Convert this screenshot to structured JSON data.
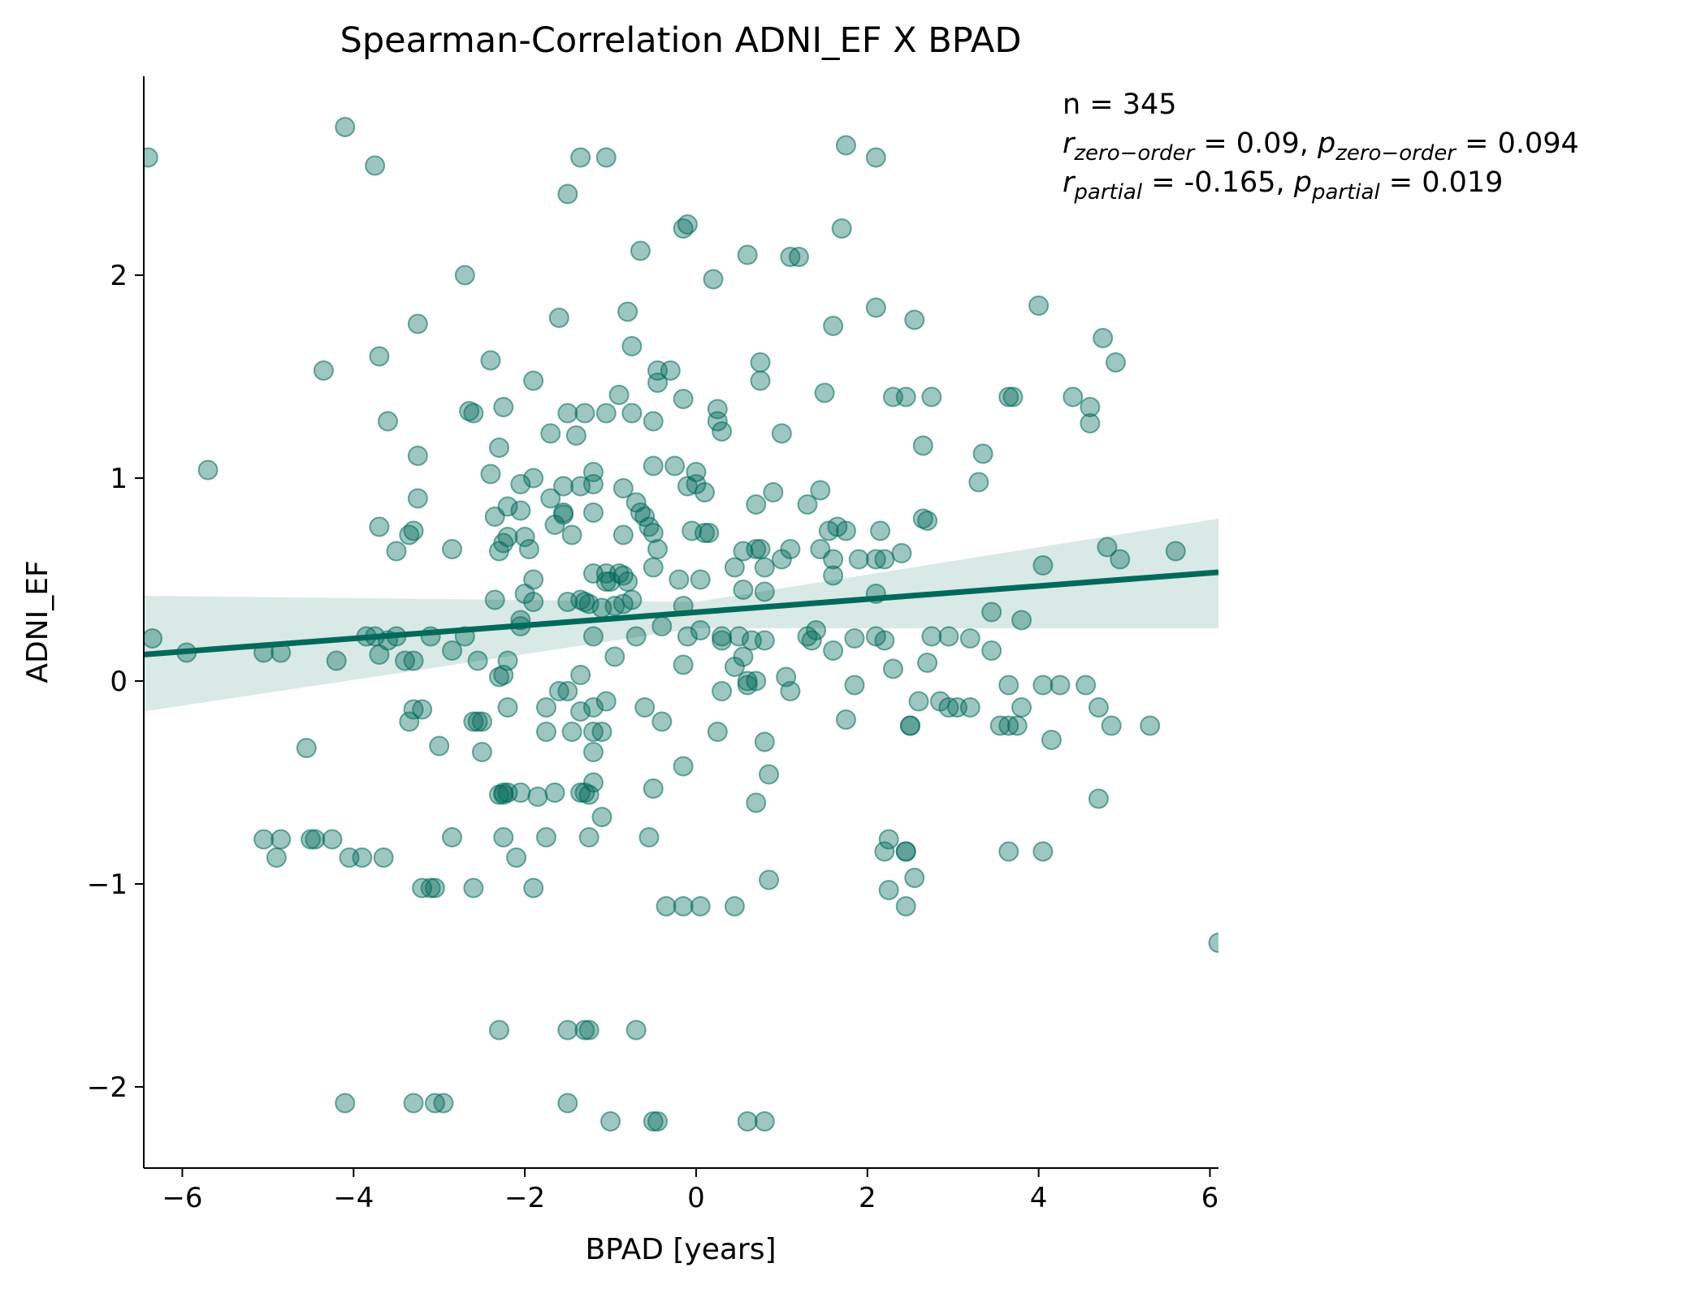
{
  "chart_data": {
    "type": "scatter",
    "title": "Spearman-Correlation ADNI_EF X BPAD",
    "xlabel": "BPAD [years]",
    "ylabel": "ADNI_EF",
    "xlim": [
      -6.45,
      6.1
    ],
    "ylim": [
      -2.4,
      2.98
    ],
    "xticks": [
      -6,
      -4,
      -2,
      0,
      2,
      4,
      6
    ],
    "xtick_labels": [
      "−6",
      "−4",
      "−2",
      "0",
      "2",
      "4",
      "6"
    ],
    "yticks": [
      -2,
      -1,
      0,
      1,
      2
    ],
    "ytick_labels": [
      "−2",
      "−1",
      "0",
      "1",
      "2"
    ],
    "grid": false,
    "colors": {
      "points": "#006a5a",
      "line": "#006a5a",
      "band": "#006a5a"
    },
    "regression": {
      "slope": 0.0323,
      "intercept": 0.339,
      "ci_lower": [
        [
          -6.45,
          -0.15
        ],
        [
          0.0,
          0.26
        ],
        [
          6.1,
          0.26
        ]
      ],
      "ci_upper": [
        [
          -6.45,
          0.42
        ],
        [
          0.0,
          0.39
        ],
        [
          6.1,
          0.8
        ]
      ]
    },
    "annotation": {
      "n_text": "n = 345",
      "r_zero_text": "r",
      "r_zero_sub": "zero−order",
      "r_zero_value": " = 0.09, ",
      "p_zero_text": "p",
      "p_zero_sub": "zero−order",
      "p_zero_value": " = 0.094",
      "r_partial_text": "r",
      "r_partial_sub": "partial",
      "r_partial_value": " = -0.165, ",
      "p_partial_text": "p",
      "p_partial_sub": "partial",
      "p_partial_value": " = 0.019"
    },
    "points": [
      [
        -6.4,
        2.58
      ],
      [
        -4.1,
        2.73
      ],
      [
        -3.75,
        2.54
      ],
      [
        -1.5,
        2.4
      ],
      [
        -1.35,
        2.58
      ],
      [
        -1.05,
        2.58
      ],
      [
        1.75,
        2.64
      ],
      [
        2.1,
        2.58
      ],
      [
        -0.15,
        2.23
      ],
      [
        -0.1,
        2.25
      ],
      [
        1.7,
        2.23
      ],
      [
        -0.65,
        2.12
      ],
      [
        0.6,
        2.1
      ],
      [
        1.1,
        2.09
      ],
      [
        1.2,
        2.09
      ],
      [
        -2.7,
        2.0
      ],
      [
        0.2,
        1.98
      ],
      [
        2.1,
        1.84
      ],
      [
        4.0,
        1.85
      ],
      [
        -0.8,
        1.82
      ],
      [
        -1.6,
        1.79
      ],
      [
        2.55,
        1.78
      ],
      [
        1.6,
        1.75
      ],
      [
        -3.25,
        1.76
      ],
      [
        4.75,
        1.69
      ],
      [
        -0.75,
        1.65
      ],
      [
        -3.7,
        1.6
      ],
      [
        -2.4,
        1.58
      ],
      [
        0.75,
        1.57
      ],
      [
        4.9,
        1.57
      ],
      [
        -4.35,
        1.53
      ],
      [
        -0.45,
        1.53
      ],
      [
        -0.3,
        1.53
      ],
      [
        -1.9,
        1.48
      ],
      [
        -0.45,
        1.47
      ],
      [
        0.75,
        1.48
      ],
      [
        -0.9,
        1.41
      ],
      [
        -0.15,
        1.39
      ],
      [
        1.5,
        1.42
      ],
      [
        2.3,
        1.4
      ],
      [
        2.45,
        1.4
      ],
      [
        2.75,
        1.4
      ],
      [
        3.65,
        1.4
      ],
      [
        3.7,
        1.4
      ],
      [
        4.4,
        1.4
      ],
      [
        4.6,
        1.35
      ],
      [
        -2.25,
        1.35
      ],
      [
        0.25,
        1.34
      ],
      [
        -2.65,
        1.33
      ],
      [
        -2.6,
        1.32
      ],
      [
        -1.5,
        1.32
      ],
      [
        -1.3,
        1.32
      ],
      [
        -1.05,
        1.32
      ],
      [
        -0.75,
        1.32
      ],
      [
        -0.5,
        1.28
      ],
      [
        0.25,
        1.28
      ],
      [
        -3.6,
        1.28
      ],
      [
        4.6,
        1.27
      ],
      [
        0.3,
        1.23
      ],
      [
        -1.7,
        1.22
      ],
      [
        -1.4,
        1.21
      ],
      [
        1.0,
        1.22
      ],
      [
        2.65,
        1.16
      ],
      [
        -2.3,
        1.15
      ],
      [
        -3.25,
        1.11
      ],
      [
        3.35,
        1.12
      ],
      [
        -5.7,
        1.04
      ],
      [
        -2.4,
        1.02
      ],
      [
        -1.2,
        1.03
      ],
      [
        -0.5,
        1.06
      ],
      [
        -0.25,
        1.06
      ],
      [
        0.0,
        1.03
      ],
      [
        -1.2,
        0.97
      ],
      [
        -1.35,
        0.96
      ],
      [
        -1.55,
        0.96
      ],
      [
        -2.05,
        0.97
      ],
      [
        -1.9,
        1.0
      ],
      [
        0.0,
        0.97
      ],
      [
        -0.1,
        0.96
      ],
      [
        -0.85,
        0.95
      ],
      [
        0.1,
        0.93
      ],
      [
        0.9,
        0.93
      ],
      [
        1.45,
        0.94
      ],
      [
        3.3,
        0.98
      ],
      [
        -3.25,
        0.9
      ],
      [
        -2.2,
        0.86
      ],
      [
        -1.7,
        0.9
      ],
      [
        -0.7,
        0.88
      ],
      [
        -1.55,
        0.82
      ],
      [
        -1.55,
        0.83
      ],
      [
        -1.2,
        0.83
      ],
      [
        -0.65,
        0.83
      ],
      [
        -0.6,
        0.81
      ],
      [
        0.7,
        0.87
      ],
      [
        1.3,
        0.87
      ],
      [
        2.65,
        0.8
      ],
      [
        2.7,
        0.79
      ],
      [
        -2.05,
        0.84
      ],
      [
        -2.35,
        0.81
      ],
      [
        -3.7,
        0.76
      ],
      [
        -3.35,
        0.72
      ],
      [
        -3.3,
        0.74
      ],
      [
        -2.2,
        0.71
      ],
      [
        -2.0,
        0.71
      ],
      [
        -1.45,
        0.72
      ],
      [
        -1.65,
        0.77
      ],
      [
        -0.55,
        0.76
      ],
      [
        -0.5,
        0.73
      ],
      [
        -0.85,
        0.72
      ],
      [
        0.1,
        0.73
      ],
      [
        0.15,
        0.73
      ],
      [
        -0.05,
        0.74
      ],
      [
        1.55,
        0.74
      ],
      [
        1.65,
        0.76
      ],
      [
        1.75,
        0.74
      ],
      [
        2.15,
        0.74
      ],
      [
        -3.5,
        0.64
      ],
      [
        -2.85,
        0.65
      ],
      [
        -2.3,
        0.64
      ],
      [
        -2.25,
        0.68
      ],
      [
        -1.95,
        0.65
      ],
      [
        -0.45,
        0.65
      ],
      [
        0.55,
        0.64
      ],
      [
        0.7,
        0.65
      ],
      [
        0.75,
        0.65
      ],
      [
        1.1,
        0.65
      ],
      [
        1.45,
        0.65
      ],
      [
        2.4,
        0.63
      ],
      [
        1.0,
        0.6
      ],
      [
        1.6,
        0.6
      ],
      [
        1.9,
        0.6
      ],
      [
        2.1,
        0.6
      ],
      [
        2.2,
        0.6
      ],
      [
        4.05,
        0.57
      ],
      [
        4.8,
        0.66
      ],
      [
        4.95,
        0.6
      ],
      [
        5.6,
        0.64
      ],
      [
        -1.2,
        0.53
      ],
      [
        -1.05,
        0.53
      ],
      [
        -0.85,
        0.52
      ],
      [
        -0.9,
        0.53
      ],
      [
        -0.5,
        0.56
      ],
      [
        0.45,
        0.56
      ],
      [
        0.8,
        0.56
      ],
      [
        1.6,
        0.52
      ],
      [
        -1.9,
        0.5
      ],
      [
        -1.05,
        0.49
      ],
      [
        -1.0,
        0.49
      ],
      [
        -0.8,
        0.49
      ],
      [
        -0.2,
        0.5
      ],
      [
        0.05,
        0.5
      ],
      [
        -1.5,
        0.39
      ],
      [
        -1.3,
        0.39
      ],
      [
        -1.25,
        0.38
      ],
      [
        -1.1,
        0.36
      ],
      [
        -0.95,
        0.37
      ],
      [
        -0.85,
        0.38
      ],
      [
        -0.75,
        0.4
      ],
      [
        -0.15,
        0.37
      ],
      [
        0.55,
        0.45
      ],
      [
        0.8,
        0.44
      ],
      [
        2.1,
        0.43
      ],
      [
        -2.35,
        0.4
      ],
      [
        -2.0,
        0.43
      ],
      [
        -1.9,
        0.39
      ],
      [
        -1.35,
        0.4
      ],
      [
        3.45,
        0.34
      ],
      [
        3.8,
        0.3
      ],
      [
        -2.05,
        0.3
      ],
      [
        -2.05,
        0.27
      ],
      [
        -0.4,
        0.27
      ],
      [
        -0.1,
        0.22
      ],
      [
        0.05,
        0.25
      ],
      [
        0.3,
        0.2
      ],
      [
        0.3,
        0.22
      ],
      [
        0.5,
        0.22
      ],
      [
        0.65,
        0.2
      ],
      [
        0.8,
        0.2
      ],
      [
        1.3,
        0.22
      ],
      [
        1.35,
        0.2
      ],
      [
        1.4,
        0.25
      ],
      [
        1.85,
        0.21
      ],
      [
        2.1,
        0.22
      ],
      [
        2.2,
        0.2
      ],
      [
        2.75,
        0.22
      ],
      [
        2.95,
        0.22
      ],
      [
        3.2,
        0.21
      ],
      [
        -6.35,
        0.21
      ],
      [
        -5.95,
        0.14
      ],
      [
        -5.05,
        0.14
      ],
      [
        -4.85,
        0.14
      ],
      [
        -3.85,
        0.22
      ],
      [
        -3.75,
        0.22
      ],
      [
        -3.6,
        0.2
      ],
      [
        -3.5,
        0.22
      ],
      [
        -3.1,
        0.22
      ],
      [
        -2.7,
        0.22
      ],
      [
        -1.2,
        0.22
      ],
      [
        -0.7,
        0.22
      ],
      [
        -3.7,
        0.13
      ],
      [
        -3.4,
        0.1
      ],
      [
        -3.3,
        0.1
      ],
      [
        -2.85,
        0.15
      ],
      [
        -2.55,
        0.1
      ],
      [
        -2.2,
        0.1
      ],
      [
        -0.95,
        0.12
      ],
      [
        -0.15,
        0.08
      ],
      [
        0.45,
        0.07
      ],
      [
        0.55,
        0.12
      ],
      [
        1.6,
        0.15
      ],
      [
        2.3,
        0.06
      ],
      [
        2.7,
        0.09
      ],
      [
        3.45,
        0.15
      ],
      [
        -4.2,
        0.1
      ],
      [
        -2.3,
        0.02
      ],
      [
        -2.25,
        0.03
      ],
      [
        -1.35,
        0.03
      ],
      [
        0.6,
        0.0
      ],
      [
        0.7,
        0.0
      ],
      [
        1.05,
        0.02
      ],
      [
        3.65,
        -0.02
      ],
      [
        4.05,
        -0.02
      ],
      [
        4.25,
        -0.02
      ],
      [
        4.55,
        -0.02
      ],
      [
        0.3,
        -0.05
      ],
      [
        0.6,
        -0.02
      ],
      [
        1.1,
        -0.05
      ],
      [
        1.85,
        -0.02
      ],
      [
        -1.5,
        -0.05
      ],
      [
        -1.6,
        -0.05
      ],
      [
        -1.05,
        -0.1
      ],
      [
        -1.75,
        -0.13
      ],
      [
        -1.35,
        -0.15
      ],
      [
        -1.2,
        -0.13
      ],
      [
        -0.6,
        -0.13
      ],
      [
        -2.2,
        -0.13
      ],
      [
        -3.3,
        -0.14
      ],
      [
        -3.2,
        -0.14
      ],
      [
        2.6,
        -0.1
      ],
      [
        2.85,
        -0.1
      ],
      [
        2.95,
        -0.13
      ],
      [
        3.05,
        -0.13
      ],
      [
        3.2,
        -0.13
      ],
      [
        3.8,
        -0.13
      ],
      [
        4.7,
        -0.13
      ],
      [
        -3.35,
        -0.2
      ],
      [
        -2.6,
        -0.2
      ],
      [
        -2.55,
        -0.2
      ],
      [
        -2.5,
        -0.2
      ],
      [
        -1.75,
        -0.25
      ],
      [
        -1.45,
        -0.25
      ],
      [
        -1.2,
        -0.25
      ],
      [
        -1.1,
        -0.25
      ],
      [
        -0.4,
        -0.2
      ],
      [
        0.25,
        -0.25
      ],
      [
        1.75,
        -0.19
      ],
      [
        2.5,
        -0.22
      ],
      [
        2.5,
        -0.22
      ],
      [
        3.55,
        -0.22
      ],
      [
        3.65,
        -0.22
      ],
      [
        3.75,
        -0.22
      ],
      [
        4.85,
        -0.22
      ],
      [
        5.3,
        -0.22
      ],
      [
        -4.55,
        -0.33
      ],
      [
        -3.0,
        -0.32
      ],
      [
        -2.5,
        -0.35
      ],
      [
        -1.2,
        -0.35
      ],
      [
        0.8,
        -0.3
      ],
      [
        4.15,
        -0.29
      ],
      [
        -0.15,
        -0.42
      ],
      [
        0.85,
        -0.46
      ],
      [
        -2.3,
        -0.56
      ],
      [
        -2.25,
        -0.55
      ],
      [
        -2.2,
        -0.55
      ],
      [
        -2.25,
        -0.56
      ],
      [
        -2.05,
        -0.55
      ],
      [
        -1.85,
        -0.57
      ],
      [
        -1.65,
        -0.55
      ],
      [
        -1.35,
        -0.55
      ],
      [
        -1.3,
        -0.55
      ],
      [
        -1.25,
        -0.56
      ],
      [
        -1.2,
        -0.5
      ],
      [
        -0.5,
        -0.53
      ],
      [
        0.7,
        -0.6
      ],
      [
        4.7,
        -0.58
      ],
      [
        -1.1,
        -0.67
      ],
      [
        -5.05,
        -0.78
      ],
      [
        -4.85,
        -0.78
      ],
      [
        -4.5,
        -0.78
      ],
      [
        -4.45,
        -0.78
      ],
      [
        -4.25,
        -0.78
      ],
      [
        -2.85,
        -0.77
      ],
      [
        -2.25,
        -0.77
      ],
      [
        -1.75,
        -0.77
      ],
      [
        -1.25,
        -0.77
      ],
      [
        -0.55,
        -0.77
      ],
      [
        2.25,
        -0.78
      ],
      [
        -4.9,
        -0.87
      ],
      [
        -4.05,
        -0.87
      ],
      [
        -3.9,
        -0.87
      ],
      [
        -3.65,
        -0.87
      ],
      [
        -2.1,
        -0.87
      ],
      [
        2.2,
        -0.84
      ],
      [
        2.45,
        -0.84
      ],
      [
        2.45,
        -0.84
      ],
      [
        3.65,
        -0.84
      ],
      [
        4.05,
        -0.84
      ],
      [
        -3.2,
        -1.02
      ],
      [
        -3.1,
        -1.02
      ],
      [
        -3.05,
        -1.02
      ],
      [
        -2.6,
        -1.02
      ],
      [
        -1.9,
        -1.02
      ],
      [
        0.85,
        -0.98
      ],
      [
        2.25,
        -1.03
      ],
      [
        2.55,
        -0.97
      ],
      [
        -0.35,
        -1.11
      ],
      [
        -0.15,
        -1.11
      ],
      [
        0.05,
        -1.11
      ],
      [
        0.45,
        -1.11
      ],
      [
        2.45,
        -1.11
      ],
      [
        6.1,
        -1.29
      ],
      [
        -2.3,
        -1.72
      ],
      [
        -1.5,
        -1.72
      ],
      [
        -1.3,
        -1.72
      ],
      [
        -1.25,
        -1.72
      ],
      [
        -0.7,
        -1.72
      ],
      [
        -4.1,
        -2.08
      ],
      [
        -3.3,
        -2.08
      ],
      [
        -3.05,
        -2.08
      ],
      [
        -2.95,
        -2.08
      ],
      [
        -1.5,
        -2.08
      ],
      [
        -1.0,
        -2.17
      ],
      [
        -0.5,
        -2.17
      ],
      [
        -0.45,
        -2.17
      ],
      [
        0.6,
        -2.17
      ],
      [
        0.8,
        -2.17
      ]
    ]
  }
}
